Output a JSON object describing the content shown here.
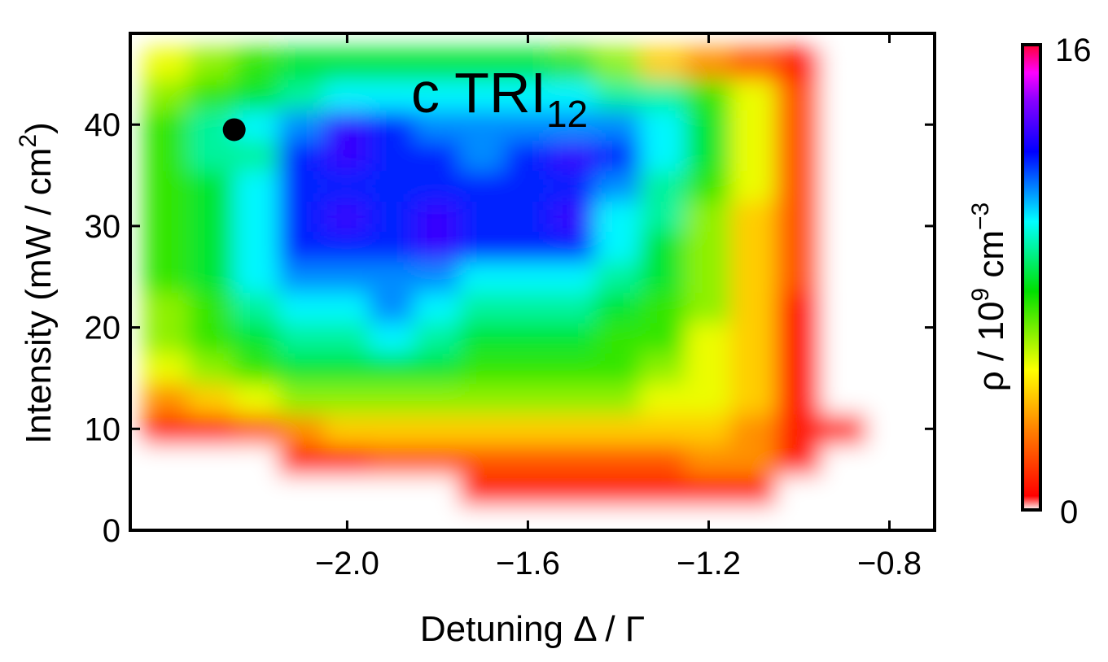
{
  "chart_data": {
    "type": "heatmap",
    "title": "c TRI",
    "title_subscript": "12",
    "xlabel": "Detuning Δ / Γ",
    "ylabel": "Intensity (mW / cm",
    "ylabel_superscript": "2",
    "ylabel_close": ")",
    "xlim": [
      -2.48,
      -0.7
    ],
    "ylim": [
      0,
      49
    ],
    "xticks": [
      -2.0,
      -1.6,
      -1.2,
      -0.8
    ],
    "xtick_labels": [
      "−2.0",
      "−1.6",
      "−1.2",
      "−0.8"
    ],
    "yticks": [
      0,
      10,
      20,
      30,
      40
    ],
    "ytick_labels": [
      "0",
      "10",
      "20",
      "30",
      "40"
    ],
    "colorbar": {
      "label_prefix": "ρ / 10",
      "label_exp": "9",
      "label_unit": " cm",
      "label_unit_exp": "−3",
      "min": 0,
      "max": 16,
      "min_label": "0",
      "max_label": "16",
      "colormap": "rainbow (red→yellow→green→cyan→blue→purple→magenta)"
    },
    "x": [
      -2.4,
      -2.3,
      -2.2,
      -2.1,
      -2.0,
      -1.9,
      -1.8,
      -1.7,
      -1.6,
      -1.5,
      -1.4,
      -1.3,
      -1.2,
      -1.1,
      -1.0,
      -0.9,
      -0.8
    ],
    "y": [
      1,
      4,
      7,
      10,
      13,
      16,
      19,
      22,
      25,
      28,
      31,
      34,
      37,
      40,
      43,
      46
    ],
    "z": [
      [
        0,
        0,
        0,
        0,
        0,
        0,
        0,
        0,
        0,
        0,
        0,
        0,
        0,
        0,
        0,
        0,
        0
      ],
      [
        0,
        0,
        0,
        0,
        0,
        0,
        0,
        1,
        1,
        1,
        1,
        1,
        1,
        1,
        0,
        0,
        0
      ],
      [
        0,
        0,
        0,
        1,
        1,
        2,
        2,
        2,
        2,
        2,
        2,
        2,
        3,
        3,
        1,
        0,
        0
      ],
      [
        1,
        1,
        2,
        3,
        4,
        4,
        4,
        4,
        4,
        4,
        4,
        4,
        4,
        3,
        1,
        1,
        0
      ],
      [
        3,
        4,
        5,
        6,
        6,
        6,
        6,
        6,
        6,
        6,
        6,
        5,
        5,
        4,
        1,
        0,
        0
      ],
      [
        5,
        6,
        7,
        8,
        8,
        8,
        8,
        7,
        7,
        7,
        7,
        6,
        5,
        4,
        1,
        0,
        0
      ],
      [
        6,
        7,
        8,
        9,
        9,
        10,
        9,
        8,
        8,
        8,
        7,
        7,
        5,
        4,
        1,
        0,
        0
      ],
      [
        6,
        7,
        9,
        10,
        10,
        11,
        10,
        9,
        9,
        9,
        8,
        7,
        6,
        4,
        1,
        0,
        0
      ],
      [
        7,
        8,
        10,
        11,
        11,
        11,
        11,
        10,
        10,
        10,
        9,
        8,
        6,
        4,
        2,
        0,
        0
      ],
      [
        7,
        8,
        10,
        12,
        12,
        12,
        13,
        12,
        12,
        12,
        10,
        8,
        6,
        4,
        2,
        0,
        0
      ],
      [
        7,
        8,
        10,
        12,
        13,
        12,
        13,
        12,
        12,
        13,
        10,
        9,
        6,
        4,
        2,
        0,
        0
      ],
      [
        7,
        8,
        10,
        12,
        12,
        12,
        12,
        12,
        12,
        12,
        11,
        9,
        7,
        5,
        2,
        0,
        0
      ],
      [
        7,
        9,
        9,
        12,
        13,
        12,
        12,
        11,
        12,
        13,
        12,
        10,
        8,
        5,
        2,
        0,
        0
      ],
      [
        7,
        9,
        10,
        11,
        13,
        12,
        11,
        11,
        11,
        11,
        11,
        10,
        8,
        5,
        2,
        0,
        0
      ],
      [
        6,
        7,
        8,
        9,
        10,
        10,
        10,
        10,
        10,
        10,
        9,
        9,
        7,
        5,
        2,
        0,
        0
      ],
      [
        5,
        6,
        7,
        8,
        8,
        8,
        8,
        8,
        8,
        7,
        6,
        4,
        3,
        2,
        1,
        0,
        0
      ]
    ],
    "marker": {
      "x": -2.25,
      "y": 39.5
    }
  }
}
